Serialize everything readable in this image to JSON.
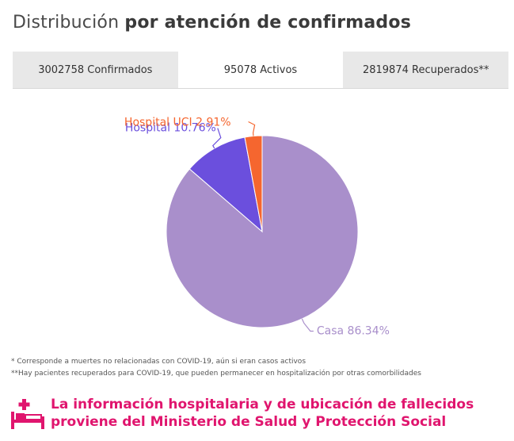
{
  "title": {
    "regular": "Distribución",
    "bold": "por atención de confirmados"
  },
  "tabs": [
    {
      "label": "3002758 Confirmados",
      "active": false
    },
    {
      "label": "95078 Activos",
      "active": true
    },
    {
      "label": "2819874 Recuperados**",
      "active": false
    }
  ],
  "chart_data": {
    "type": "pie",
    "slices": [
      {
        "label": "Casa 86.34%",
        "value": 86.34,
        "color": "#a98fcb"
      },
      {
        "label": "Hospital 10.76%",
        "value": 10.76,
        "color": "#6b4fdd"
      },
      {
        "label": "Hospital UCI 2.91%",
        "value": 2.91,
        "color": "#f5662f"
      }
    ]
  },
  "notes": {
    "line1": "* Corresponde a muertes no relacionadas con COVID-19, aún si eran casos activos",
    "line2": "**Hay pacientes recuperados para COVID-19, que pueden permanecer en hospitalización por otras comorbilidades"
  },
  "info": {
    "line1": "La información hospitalaria y de ubicación de fallecidos",
    "line2": "proviene del Ministerio de Salud y Protección Social",
    "icon": "hospital-bed-icon",
    "color": "#e0156e"
  }
}
